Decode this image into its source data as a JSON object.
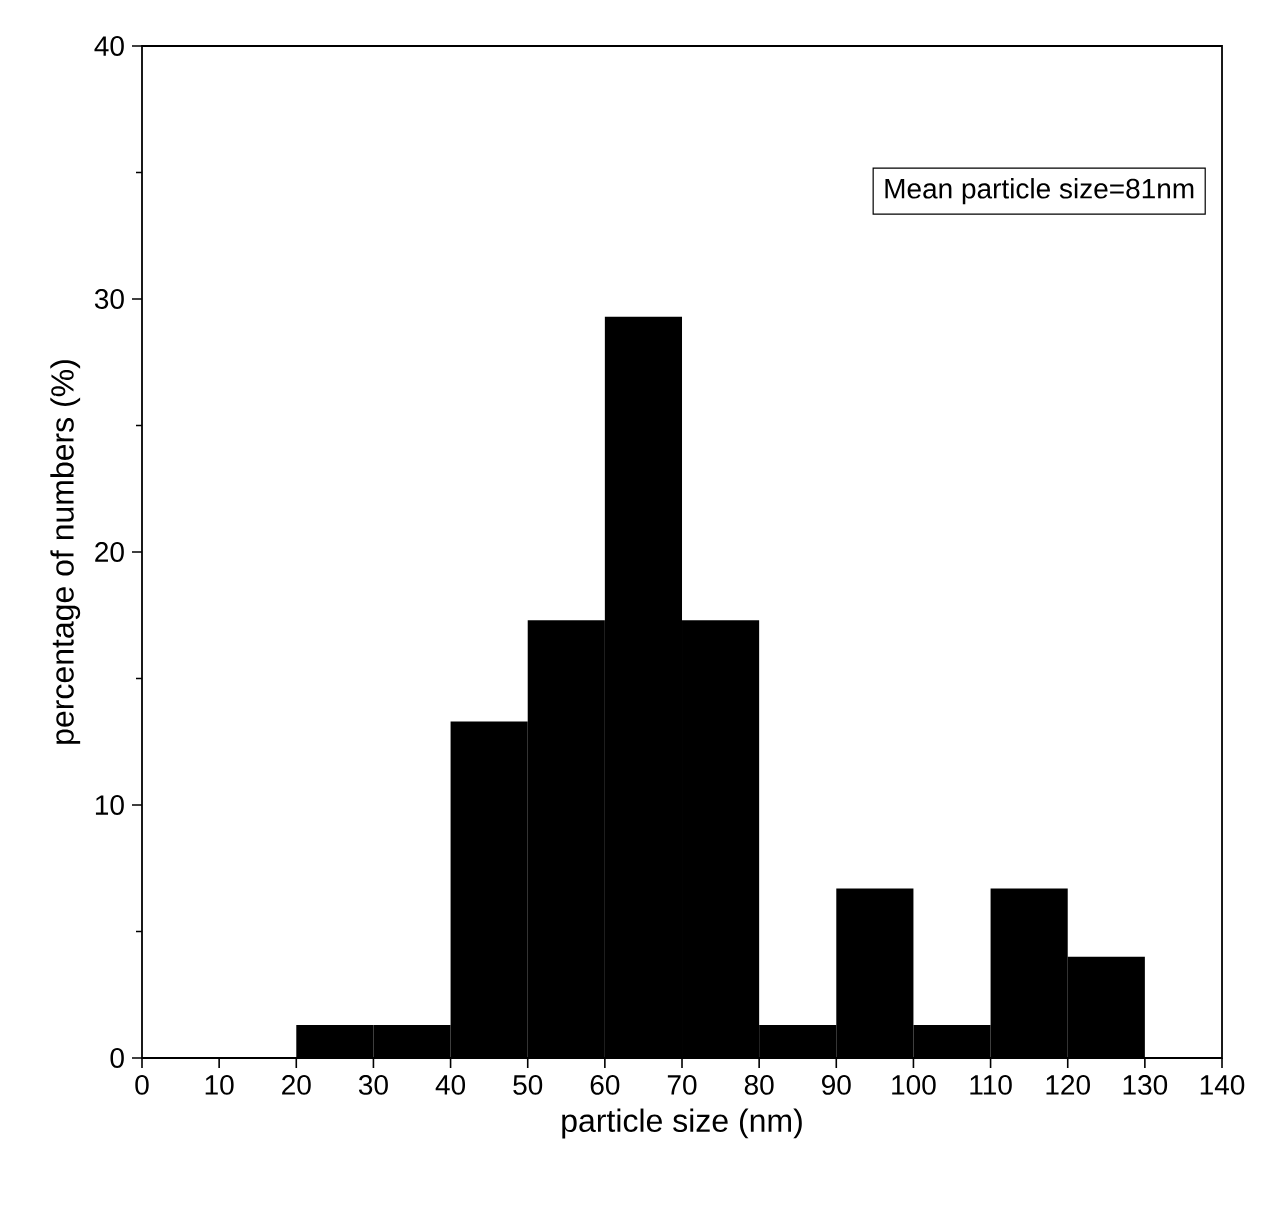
{
  "chart_data": {
    "type": "histogram",
    "xlabel": "particle size (nm)",
    "ylabel": "percentage of numbers (%)",
    "bins": [
      20,
      30,
      40,
      50,
      60,
      70,
      80,
      90,
      100,
      110,
      120,
      130
    ],
    "values": [
      1.3,
      1.3,
      13.3,
      17.3,
      29.3,
      17.3,
      1.3,
      6.7,
      1.3,
      6.7,
      4.0
    ],
    "color": "#000000",
    "xlim": [
      0,
      140
    ],
    "ylim": [
      0,
      40
    ],
    "xticks": [
      0,
      10,
      20,
      30,
      40,
      50,
      60,
      70,
      80,
      90,
      100,
      110,
      120,
      130,
      140
    ],
    "yticks": [
      0,
      10,
      20,
      30,
      40
    ],
    "annotations": [
      "Mean particle size=81nm"
    ],
    "grid": false
  }
}
